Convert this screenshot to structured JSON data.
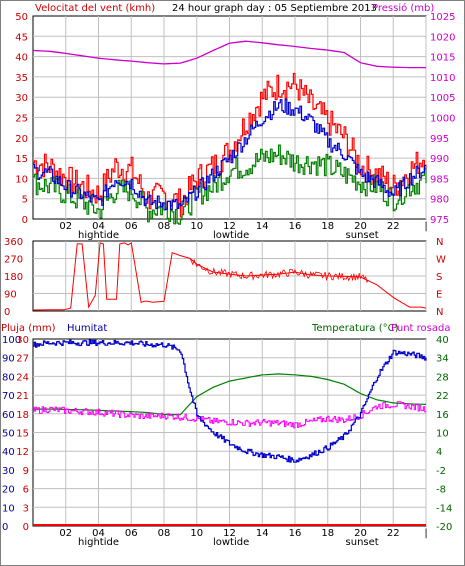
{
  "header": {
    "left": "Velocitat del vent (kmh)",
    "center": "24 hour graph day : 05 Septiembre 2013",
    "right": "Pressió (mb)"
  },
  "colors": {
    "wind_avg": "#008000",
    "wind_gust": "#ff0000",
    "wind_dir": "#ff0000",
    "pressure": "#cc00cc",
    "humidity": "#0000cc",
    "temperature": "#008000",
    "dewpoint": "#ff00ff",
    "rain": "#ff0000",
    "series_blue": "#0000cc",
    "frame": "#000000",
    "grid": "#c0c0c0",
    "label_red": "#cc0000",
    "label_magenta": "#cc00cc",
    "label_green": "#006600",
    "label_blue": "#000099"
  },
  "chart_data": [
    {
      "id": "wind",
      "type": "line",
      "yleft_ticks": [
        "0",
        "5",
        "10",
        "15",
        "20",
        "25",
        "30",
        "35",
        "40",
        "45",
        "50"
      ],
      "yright_ticks": [
        "975",
        "980",
        "985",
        "990",
        "995",
        "1000",
        "1005",
        "1010",
        "1015",
        "1020",
        "1025"
      ],
      "ylim": [
        0,
        50
      ],
      "y2lim": [
        975,
        1025
      ],
      "x_hour_ticks": [
        "02",
        "04",
        "06",
        "08",
        "10",
        "12",
        "14",
        "16",
        "18",
        "20",
        "22",
        "|"
      ],
      "x_markers": [
        "hightide",
        "lowtide",
        "sunset"
      ],
      "series": [
        {
          "key": "gust",
          "x": [
            0,
            1,
            2,
            3,
            4,
            5,
            6,
            7,
            8,
            9,
            10,
            11,
            12,
            13,
            14,
            15,
            16,
            17,
            18,
            19,
            20,
            21,
            22,
            23,
            24
          ],
          "values": [
            14,
            13,
            10,
            8,
            6,
            13,
            12,
            5,
            6,
            4,
            10,
            13,
            17,
            24,
            30,
            33,
            33,
            28,
            24,
            20,
            13,
            11,
            8,
            12,
            16
          ]
        },
        {
          "key": "blue",
          "x": [
            0,
            1,
            2,
            3,
            4,
            5,
            6,
            7,
            8,
            9,
            10,
            11,
            12,
            13,
            14,
            15,
            16,
            17,
            18,
            19,
            20,
            21,
            22,
            23,
            24
          ],
          "values": [
            12,
            11,
            8,
            6,
            4,
            10,
            9,
            4,
            4,
            3,
            7,
            11,
            15,
            20,
            25,
            28,
            27,
            24,
            19,
            16,
            11,
            9,
            6,
            10,
            13
          ]
        },
        {
          "key": "avg",
          "x": [
            0,
            1,
            2,
            3,
            4,
            5,
            6,
            7,
            8,
            9,
            10,
            11,
            12,
            13,
            14,
            15,
            16,
            17,
            18,
            19,
            20,
            21,
            22,
            23,
            24
          ],
          "values": [
            9,
            8,
            6,
            4,
            2,
            7,
            7,
            2,
            3,
            1,
            6,
            8,
            12,
            13,
            15,
            16,
            14,
            14,
            13,
            11,
            9,
            8,
            5,
            8,
            10
          ]
        },
        {
          "key": "pressure",
          "x": [
            0,
            1,
            2,
            3,
            4,
            5,
            6,
            7,
            8,
            9,
            10,
            11,
            12,
            13,
            14,
            15,
            16,
            17,
            18,
            19,
            20,
            21,
            22,
            23,
            24
          ],
          "values": [
            1016.5,
            1016.3,
            1015.8,
            1015.2,
            1014.6,
            1014.2,
            1013.9,
            1013.5,
            1013.2,
            1013.4,
            1014.6,
            1016.5,
            1018.3,
            1018.8,
            1018.4,
            1017.9,
            1017.5,
            1017.0,
            1016.6,
            1016.0,
            1013.5,
            1012.6,
            1012.4,
            1012.3,
            1012.3
          ]
        }
      ]
    },
    {
      "id": "direction",
      "type": "line",
      "yleft_ticks": [
        "360",
        "270",
        "180",
        "90",
        "0"
      ],
      "yright_ticks": [
        "N",
        "W",
        "S",
        "E",
        "N"
      ],
      "ylim": [
        0,
        360
      ],
      "series": [
        {
          "key": "dir",
          "x": [
            0,
            1,
            1.9,
            2.3,
            2.7,
            3.0,
            3.4,
            3.8,
            4.1,
            4.3,
            4.5,
            5.1,
            5.3,
            5.6,
            5.8,
            6.0,
            6.6,
            6.8,
            7.0,
            7.3,
            8.0,
            8.5,
            9.0,
            9.6,
            10.0,
            11.0,
            12.0,
            13.0,
            14.0,
            15.0,
            16.0,
            17.0,
            18.0,
            19.0,
            20.0,
            21.0,
            22.0,
            22.5,
            23.0,
            23.7,
            24.0
          ],
          "values": [
            5,
            6,
            6,
            15,
            345,
            345,
            20,
            80,
            350,
            345,
            60,
            60,
            345,
            350,
            340,
            350,
            45,
            50,
            50,
            45,
            50,
            300,
            285,
            270,
            240,
            200,
            190,
            180,
            185,
            190,
            200,
            185,
            180,
            178,
            175,
            135,
            70,
            45,
            20,
            20,
            15
          ]
        }
      ]
    },
    {
      "id": "thermo",
      "type": "line",
      "header_left": [
        "Pluja (mm)",
        "Humitat"
      ],
      "header_right": [
        "Temperatura (°C)",
        "Punt rosada"
      ],
      "yleft_ticks": [
        "100",
        "90",
        "80",
        "70",
        "60",
        "50",
        "40",
        "30",
        "20",
        "10",
        "0"
      ],
      "yrain_ticks": [
        "30",
        "27",
        "24",
        "21",
        "18",
        "15",
        "12",
        "9",
        "6",
        "3",
        "0"
      ],
      "yright_ticks": [
        "40",
        "34",
        "28",
        "22",
        "16",
        "10",
        "4",
        "-2",
        "-8",
        "-14",
        "-20"
      ],
      "ylim": [
        0,
        100
      ],
      "y2lim": [
        -20,
        40
      ],
      "x_hour_ticks": [
        "02",
        "04",
        "06",
        "08",
        "10",
        "12",
        "14",
        "16",
        "18",
        "20",
        "22",
        "|"
      ],
      "x_markers": [
        "hightide",
        "lowtide",
        "sunset"
      ],
      "series": [
        {
          "key": "humidity",
          "x": [
            0,
            1,
            2,
            3,
            4,
            5,
            6,
            7,
            8,
            9,
            9.5,
            10,
            11,
            12,
            13,
            14,
            15,
            16,
            17,
            18,
            19,
            20,
            21,
            22,
            23,
            24
          ],
          "values": [
            97,
            98,
            98,
            98,
            98,
            98,
            98,
            97,
            97,
            94,
            75,
            59,
            50,
            44,
            40,
            38,
            37,
            35,
            38,
            42,
            48,
            60,
            80,
            93,
            92,
            90
          ]
        },
        {
          "key": "temperature",
          "x": [
            0,
            1,
            2,
            3,
            4,
            5,
            6,
            7,
            8,
            9,
            10,
            11,
            12,
            13,
            14,
            15,
            16,
            17,
            18,
            19,
            20,
            21,
            22,
            23,
            24
          ],
          "values": [
            17.5,
            17.5,
            17.4,
            17.3,
            17.1,
            16.9,
            16.7,
            16.4,
            15.8,
            15.7,
            21.5,
            24.5,
            26.5,
            27.5,
            28.5,
            28.8,
            28.5,
            28.0,
            27.0,
            25.5,
            22.5,
            20.5,
            19.5,
            19.2,
            19.0
          ]
        },
        {
          "key": "dewpoint",
          "x": [
            0,
            1,
            2,
            3,
            4,
            5,
            6,
            7,
            8,
            9,
            10,
            11,
            12,
            13,
            14,
            15,
            16,
            17,
            18,
            19,
            20,
            21,
            22,
            23,
            24
          ],
          "values": [
            17.0,
            17.5,
            17.0,
            16.8,
            16.5,
            16.0,
            15.5,
            15.2,
            15.4,
            15.0,
            14.5,
            13.5,
            13.4,
            13.0,
            13.2,
            13.0,
            12.5,
            13.5,
            14.5,
            14.0,
            15.5,
            18.5,
            19.0,
            18.5,
            17.5
          ]
        },
        {
          "key": "rain",
          "x": [
            0,
            24
          ],
          "values": [
            0,
            0
          ]
        }
      ]
    }
  ]
}
